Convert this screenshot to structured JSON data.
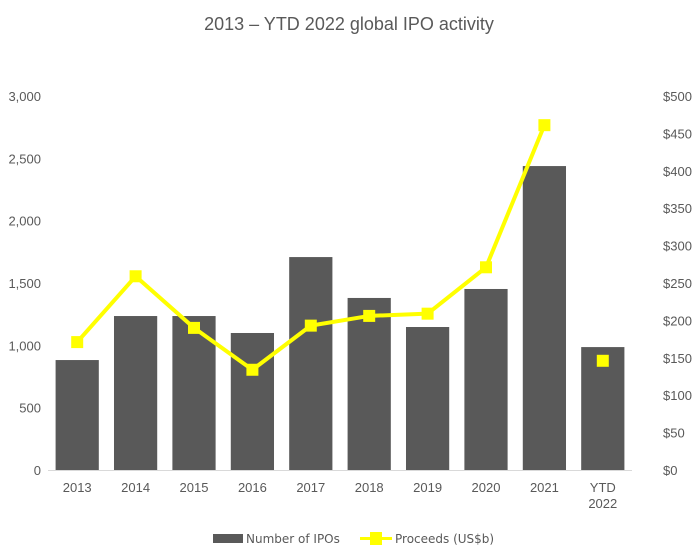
{
  "chart_data": {
    "type": "bar",
    "title": "2013 – YTD 2022 global IPO activity",
    "xlabel": "",
    "ylabel": "",
    "categories": [
      "2013",
      "2014",
      "2015",
      "2016",
      "2017",
      "2018",
      "2019",
      "2020",
      "2021",
      "YTD 2022"
    ],
    "category_lines": [
      [
        "2013"
      ],
      [
        "2014"
      ],
      [
        "2015"
      ],
      [
        "2016"
      ],
      [
        "2017"
      ],
      [
        "2018"
      ],
      [
        "2019"
      ],
      [
        "2020"
      ],
      [
        "2021"
      ],
      [
        "YTD",
        "2022"
      ]
    ],
    "series": [
      {
        "name": "Number of IPOs",
        "type": "bar",
        "axis": "left",
        "color": "#595959",
        "values": [
          882,
          1235,
          1235,
          1099,
          1708,
          1380,
          1147,
          1452,
          2438,
          986
        ]
      },
      {
        "name": "Proceeds (US$b)",
        "type": "line",
        "axis": "right",
        "color": "#FFFF00",
        "values": [
          171,
          259,
          190,
          134,
          193,
          206,
          209,
          271,
          461,
          146
        ],
        "line_break_before_last": true
      }
    ],
    "left_axis": {
      "range": [
        0,
        3000
      ],
      "ticks": [
        0,
        500,
        1000,
        1500,
        2000,
        2500,
        3000
      ],
      "tick_labels": [
        "0",
        "500",
        "1,000",
        "1,500",
        "2,000",
        "2,500",
        "3,000"
      ]
    },
    "right_axis": {
      "range": [
        0,
        500
      ],
      "ticks": [
        0,
        50,
        100,
        150,
        200,
        250,
        300,
        350,
        400,
        450,
        500
      ],
      "tick_labels": [
        "$0",
        "$50",
        "$100",
        "$150",
        "$200",
        "$250",
        "$300",
        "$350",
        "$400",
        "$450",
        "$500"
      ]
    },
    "grid": false,
    "legend": {
      "position": "bottom",
      "entries": [
        "Number of IPOs",
        "Proceeds (US$b)"
      ]
    }
  }
}
